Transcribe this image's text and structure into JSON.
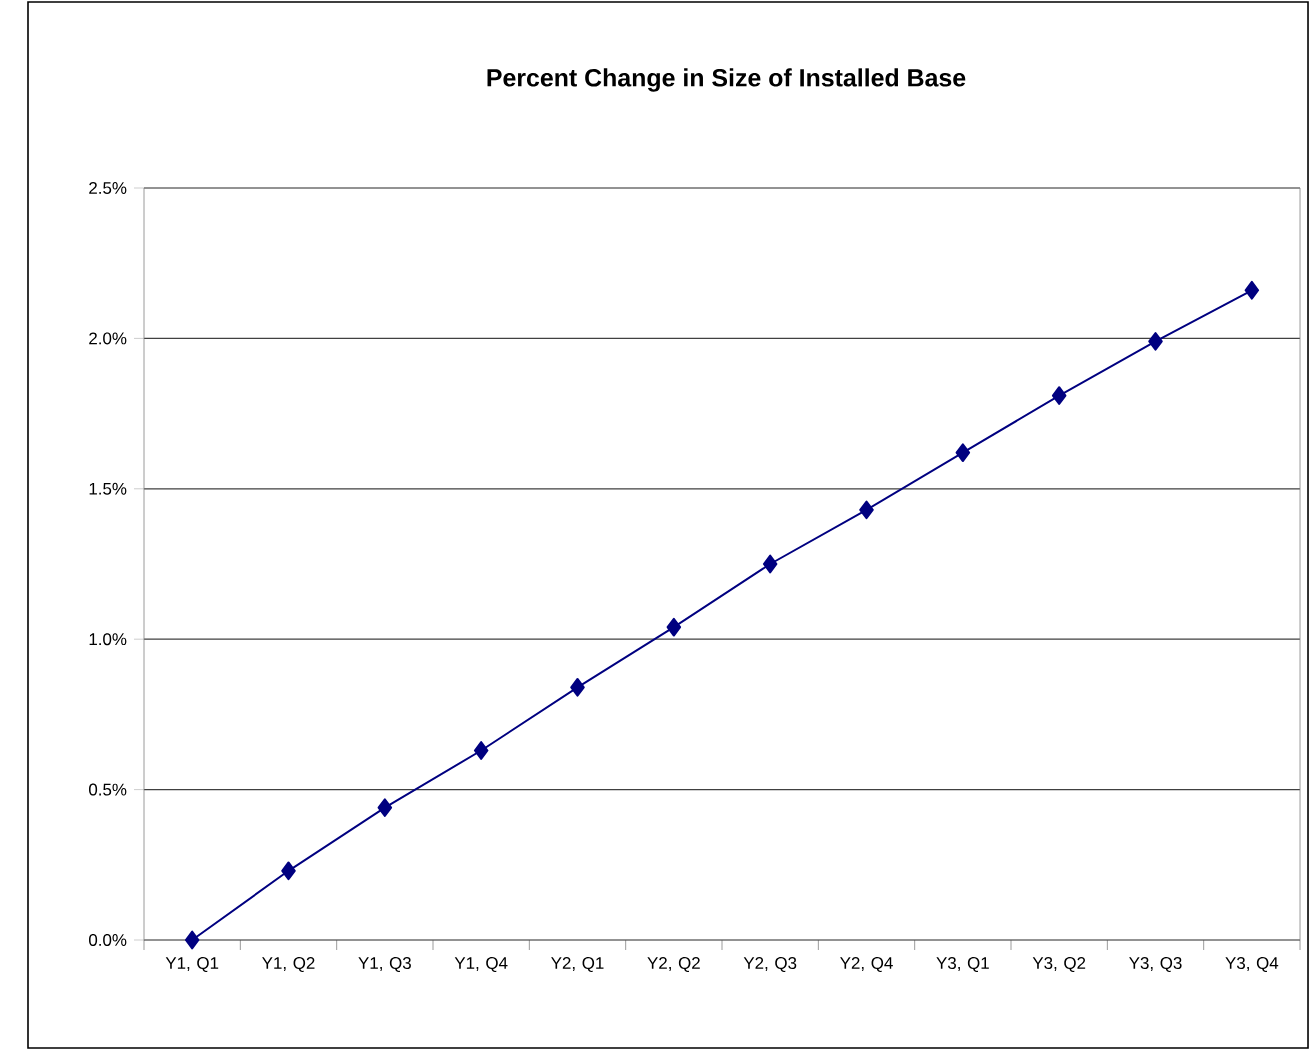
{
  "chart_data": {
    "type": "line",
    "title": "Percent Change in Size of Installed Base",
    "categories": [
      "Y1, Q1",
      "Y1, Q2",
      "Y1, Q3",
      "Y1, Q4",
      "Y2, Q1",
      "Y2, Q2",
      "Y2, Q3",
      "Y2, Q4",
      "Y3, Q1",
      "Y3, Q2",
      "Y3, Q3",
      "Y3, Q4"
    ],
    "series": [
      {
        "color": "#000080",
        "values": [
          0,
          0.23,
          0.44,
          0.63,
          0.84,
          1.04,
          1.25,
          1.43,
          1.62,
          1.81,
          1.99,
          2.16
        ]
      }
    ],
    "ylim": [
      0,
      2.5
    ],
    "yticks": [
      {
        "value": 0,
        "label": "0.0%"
      },
      {
        "value": 0.5,
        "label": "0.5%"
      },
      {
        "value": 1.0,
        "label": "1.0%"
      },
      {
        "value": 1.5,
        "label": "1.5%"
      },
      {
        "value": 2.0,
        "label": "2.0%"
      },
      {
        "value": 2.5,
        "label": "2.5%"
      }
    ],
    "grid": "y",
    "marker": "diamond",
    "line_style": "solid"
  }
}
